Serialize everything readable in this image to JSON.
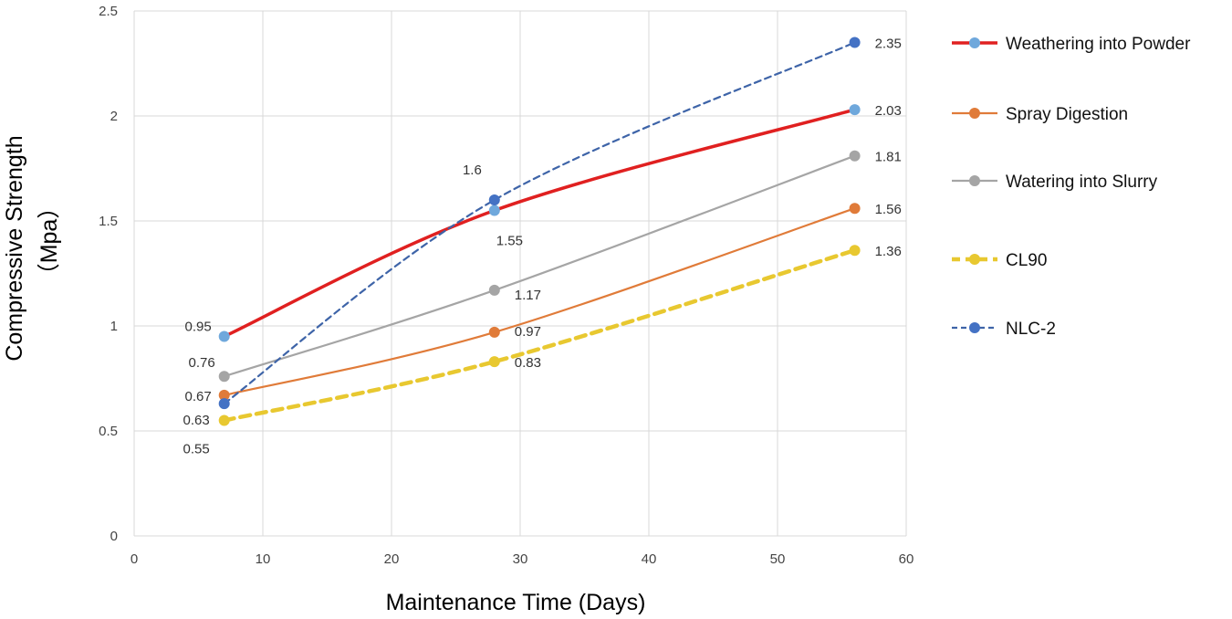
{
  "chart_data": {
    "type": "line",
    "xlabel": "Maintenance Time (Days)",
    "ylabel": "Compressive Strength",
    "ylabel_unit": "（Mpa）",
    "xlim": [
      0,
      60
    ],
    "ylim": [
      0,
      2.5
    ],
    "xticks": [
      "0",
      "10",
      "20",
      "30",
      "40",
      "50",
      "60"
    ],
    "yticks": [
      "0",
      "0.5",
      "1",
      "1.5",
      "2",
      "2.5"
    ],
    "grid": true,
    "legend_position": "right",
    "x": [
      7,
      28,
      56
    ],
    "series": [
      {
        "name": "Weathering into Powder",
        "values": [
          0.95,
          1.55,
          2.03
        ],
        "labels": [
          "0.95",
          "1.55",
          "2.03"
        ],
        "line_color": "#e02020",
        "marker_color": "#6fa8dc",
        "dashed": false
      },
      {
        "name": "Spray Digestion",
        "values": [
          0.67,
          0.97,
          1.56
        ],
        "labels": [
          "0.67",
          "0.97",
          "1.56"
        ],
        "line_color": "#e07b39",
        "marker_color": "#e07b39",
        "dashed": false
      },
      {
        "name": "Watering into Slurry",
        "values": [
          0.76,
          1.17,
          1.81
        ],
        "labels": [
          "0.76",
          "1.17",
          "1.81"
        ],
        "line_color": "#a5a5a5",
        "marker_color": "#a5a5a5",
        "dashed": false
      },
      {
        "name": "CL90",
        "values": [
          0.55,
          0.83,
          1.36
        ],
        "labels": [
          "0.55",
          "0.83",
          "1.36"
        ],
        "line_color": "#e8c830",
        "marker_color": "#e8c830",
        "dashed": true
      },
      {
        "name": "NLC-2",
        "values": [
          0.63,
          1.6,
          2.35
        ],
        "labels": [
          "0.63",
          "1.6",
          "2.35"
        ],
        "line_color": "#3e64a8",
        "marker_color": "#4472c4",
        "dashed": true
      }
    ]
  }
}
